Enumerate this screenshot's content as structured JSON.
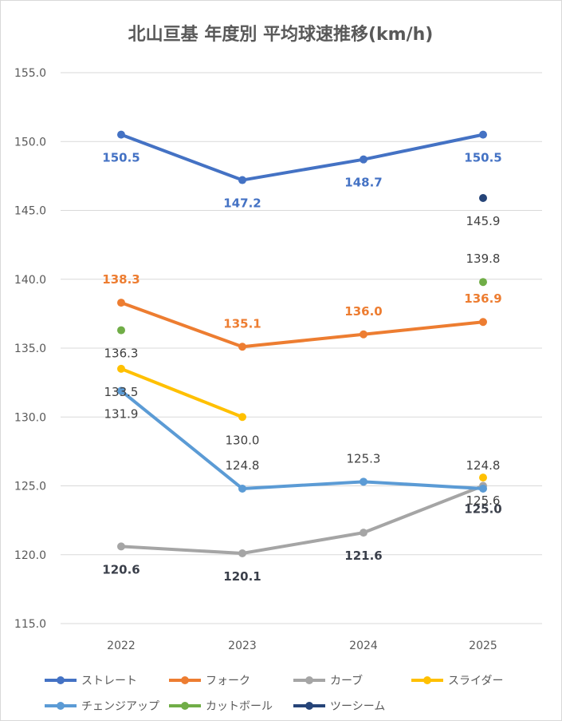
{
  "chart_data": {
    "type": "line",
    "title": "北山亘基 年度別 平均球速推移(km/h)",
    "xlabel": "",
    "ylabel": "",
    "categories": [
      "2022",
      "2023",
      "2024",
      "2025"
    ],
    "ylim": [
      115,
      155
    ],
    "yticks": [
      "115.0",
      "120.0",
      "125.0",
      "130.0",
      "135.0",
      "140.0",
      "145.0",
      "150.0",
      "155.0"
    ],
    "grid": true,
    "legend_position": "bottom",
    "series": [
      {
        "name": "ストレート",
        "color": "#4472C4",
        "values": [
          150.5,
          147.2,
          148.7,
          150.5
        ],
        "labels": [
          "150.5",
          "147.2",
          "148.7",
          "150.5"
        ],
        "label_color": "#4472C4",
        "label_weight": "bold"
      },
      {
        "name": "フォーク",
        "color": "#ED7D31",
        "values": [
          138.3,
          135.1,
          136.0,
          136.9
        ],
        "labels": [
          "138.3",
          "135.1",
          "136.0",
          "136.9"
        ],
        "label_color": "#ED7D31",
        "label_weight": "bold"
      },
      {
        "name": "カーブ",
        "color": "#A5A5A5",
        "values": [
          120.6,
          120.1,
          121.6,
          125.0
        ],
        "labels": [
          "120.6",
          "120.1",
          "121.6",
          "125.0"
        ],
        "label_color": "#3A3F4A",
        "label_weight": "bold"
      },
      {
        "name": "スライダー",
        "color": "#FFC000",
        "values": [
          133.5,
          130.0,
          null,
          125.6
        ],
        "labels": [
          "133.5",
          "130.0",
          "",
          "125.6"
        ],
        "label_color": "#404040",
        "label_weight": "normal"
      },
      {
        "name": "チェンジアップ",
        "color": "#5B9BD5",
        "values": [
          131.9,
          124.8,
          125.3,
          124.8
        ],
        "labels": [
          "131.9",
          "124.8",
          "125.3",
          "124.8"
        ],
        "label_color": "#404040",
        "label_weight": "normal"
      },
      {
        "name": "カットボール",
        "color": "#70AD47",
        "values": [
          136.3,
          null,
          null,
          139.8
        ],
        "labels": [
          "136.3",
          "",
          "",
          "139.8"
        ],
        "label_color": "#404040",
        "label_weight": "normal"
      },
      {
        "name": "ツーシーム",
        "color": "#264478",
        "values": [
          null,
          null,
          null,
          145.9
        ],
        "labels": [
          "",
          "",
          "",
          "145.9"
        ],
        "label_color": "#404040",
        "label_weight": "normal"
      }
    ]
  }
}
